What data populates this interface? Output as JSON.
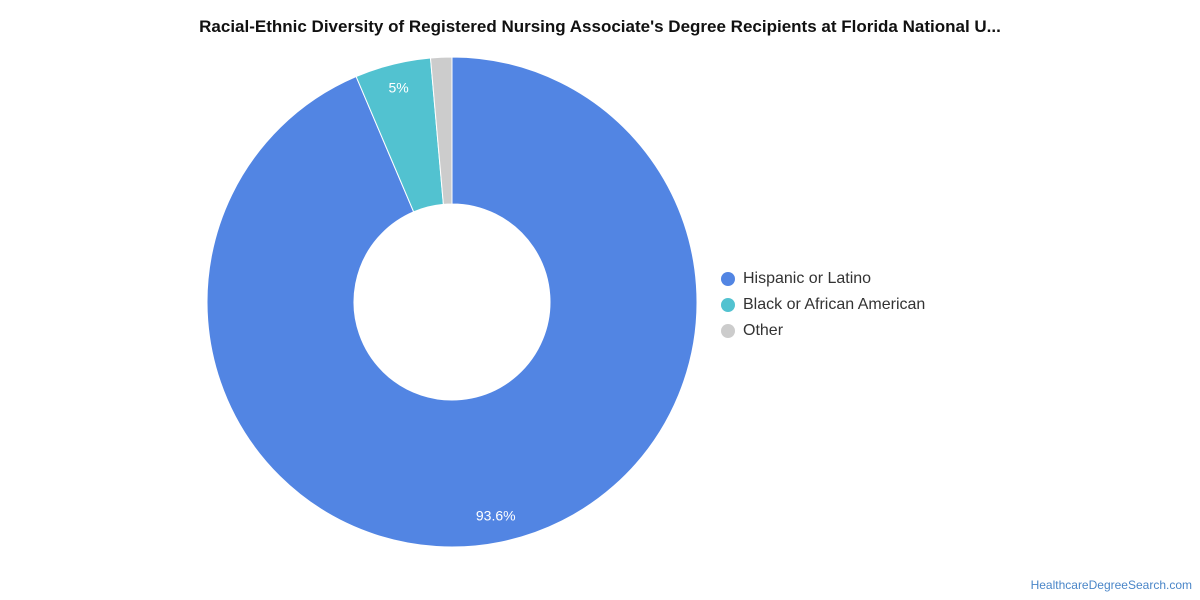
{
  "chart_data": {
    "type": "pie",
    "title": "Racial-Ethnic Diversity of Registered Nursing Associate's Degree Recipients at Florida National U...",
    "categories": [
      "Hispanic or Latino",
      "Black or African American",
      "Other"
    ],
    "values": [
      93.6,
      5.0,
      1.4
    ],
    "data_labels": [
      "93.6%",
      "5%",
      ""
    ],
    "colors": [
      "#5285e3",
      "#52c2d0",
      "#cccccc"
    ],
    "donut": true,
    "legend_position": "right"
  },
  "footer": {
    "source": "HealthcareDegreeSearch.com"
  }
}
